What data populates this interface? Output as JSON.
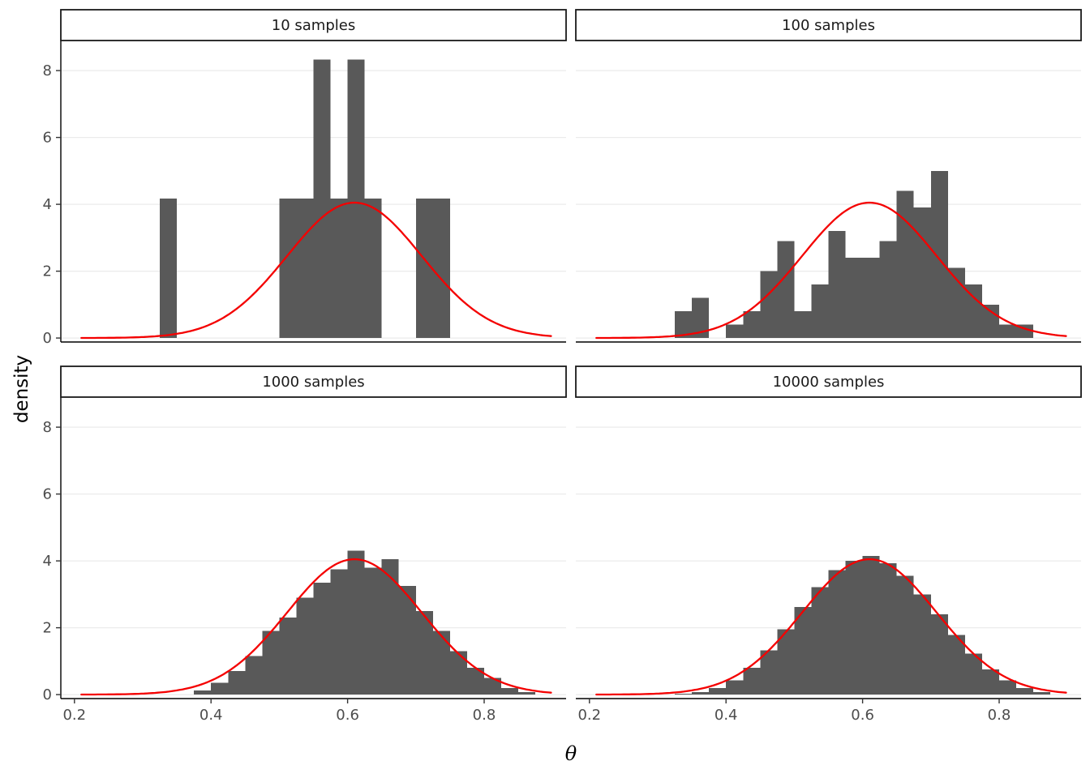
{
  "figure": {
    "background": "#ffffff"
  },
  "chart_data": {
    "type": "histogram-grid",
    "title": "",
    "xlabel": "θ",
    "ylabel": "density",
    "xlim": [
      0.18,
      0.92
    ],
    "ylim": [
      -0.12,
      8.9
    ],
    "x_ticks": [
      0.2,
      0.4,
      0.6,
      0.8
    ],
    "y_ticks": [
      0,
      2,
      4,
      6,
      8
    ],
    "binwidth": 0.025,
    "grid": "horizontal-major",
    "legend": "none",
    "colors": {
      "bar": "#595959",
      "curve": "#F40000",
      "grid": "#EBEBEB",
      "axis_line": "#000000",
      "tick": "#333333",
      "axis_text": "#4D4D4D",
      "strip_text": "#1A1A1A",
      "strip_border": "#1A1A1A",
      "strip_fill": "#FFFFFF"
    },
    "curve": {
      "shape": "normal",
      "mean": 0.61,
      "sd": 0.0985,
      "peak": 4.05,
      "x_start": 0.21,
      "x_end": 0.9
    },
    "facets": [
      {
        "label": "10 samples",
        "bars": [
          {
            "x": 0.3375,
            "h": 4.17
          },
          {
            "x": 0.5125,
            "h": 4.17
          },
          {
            "x": 0.5375,
            "h": 4.17
          },
          {
            "x": 0.5625,
            "h": 8.33
          },
          {
            "x": 0.5875,
            "h": 4.17
          },
          {
            "x": 0.6125,
            "h": 8.33
          },
          {
            "x": 0.6375,
            "h": 4.17
          },
          {
            "x": 0.7125,
            "h": 4.17
          },
          {
            "x": 0.7375,
            "h": 4.17
          }
        ]
      },
      {
        "label": "100 samples",
        "bars": [
          {
            "x": 0.3375,
            "h": 0.8
          },
          {
            "x": 0.3625,
            "h": 1.2
          },
          {
            "x": 0.4125,
            "h": 0.4
          },
          {
            "x": 0.4375,
            "h": 0.8
          },
          {
            "x": 0.4625,
            "h": 2.0
          },
          {
            "x": 0.4875,
            "h": 2.9
          },
          {
            "x": 0.5125,
            "h": 0.8
          },
          {
            "x": 0.5375,
            "h": 1.6
          },
          {
            "x": 0.5625,
            "h": 3.2
          },
          {
            "x": 0.5875,
            "h": 2.4
          },
          {
            "x": 0.6125,
            "h": 2.4
          },
          {
            "x": 0.6375,
            "h": 2.9
          },
          {
            "x": 0.6625,
            "h": 4.4
          },
          {
            "x": 0.6875,
            "h": 3.9
          },
          {
            "x": 0.7125,
            "h": 5.0
          },
          {
            "x": 0.7375,
            "h": 2.1
          },
          {
            "x": 0.7625,
            "h": 1.6
          },
          {
            "x": 0.7875,
            "h": 1.0
          },
          {
            "x": 0.8125,
            "h": 0.4
          },
          {
            "x": 0.8375,
            "h": 0.4
          }
        ]
      },
      {
        "label": "1000 samples",
        "bars": [
          {
            "x": 0.3875,
            "h": 0.12
          },
          {
            "x": 0.4125,
            "h": 0.35
          },
          {
            "x": 0.4375,
            "h": 0.7
          },
          {
            "x": 0.4625,
            "h": 1.15
          },
          {
            "x": 0.4875,
            "h": 1.9
          },
          {
            "x": 0.5125,
            "h": 2.3
          },
          {
            "x": 0.5375,
            "h": 2.9
          },
          {
            "x": 0.5625,
            "h": 3.35
          },
          {
            "x": 0.5875,
            "h": 3.75
          },
          {
            "x": 0.6125,
            "h": 4.3
          },
          {
            "x": 0.6375,
            "h": 3.8
          },
          {
            "x": 0.6625,
            "h": 4.05
          },
          {
            "x": 0.6875,
            "h": 3.25
          },
          {
            "x": 0.7125,
            "h": 2.5
          },
          {
            "x": 0.7375,
            "h": 1.9
          },
          {
            "x": 0.7625,
            "h": 1.3
          },
          {
            "x": 0.7875,
            "h": 0.8
          },
          {
            "x": 0.8125,
            "h": 0.5
          },
          {
            "x": 0.8375,
            "h": 0.2
          },
          {
            "x": 0.8625,
            "h": 0.07
          }
        ]
      },
      {
        "label": "10000 samples",
        "bars": [
          {
            "x": 0.3375,
            "h": 0.03
          },
          {
            "x": 0.3625,
            "h": 0.08
          },
          {
            "x": 0.3875,
            "h": 0.2
          },
          {
            "x": 0.4125,
            "h": 0.42
          },
          {
            "x": 0.4375,
            "h": 0.8
          },
          {
            "x": 0.4625,
            "h": 1.32
          },
          {
            "x": 0.4875,
            "h": 1.95
          },
          {
            "x": 0.5125,
            "h": 2.62
          },
          {
            "x": 0.5375,
            "h": 3.22
          },
          {
            "x": 0.5625,
            "h": 3.72
          },
          {
            "x": 0.5875,
            "h": 4.0
          },
          {
            "x": 0.6125,
            "h": 4.15
          },
          {
            "x": 0.6375,
            "h": 3.93
          },
          {
            "x": 0.6625,
            "h": 3.55
          },
          {
            "x": 0.6875,
            "h": 3.0
          },
          {
            "x": 0.7125,
            "h": 2.4
          },
          {
            "x": 0.7375,
            "h": 1.78
          },
          {
            "x": 0.7625,
            "h": 1.22
          },
          {
            "x": 0.7875,
            "h": 0.75
          },
          {
            "x": 0.8125,
            "h": 0.42
          },
          {
            "x": 0.8375,
            "h": 0.2
          },
          {
            "x": 0.8625,
            "h": 0.08
          }
        ]
      }
    ]
  }
}
